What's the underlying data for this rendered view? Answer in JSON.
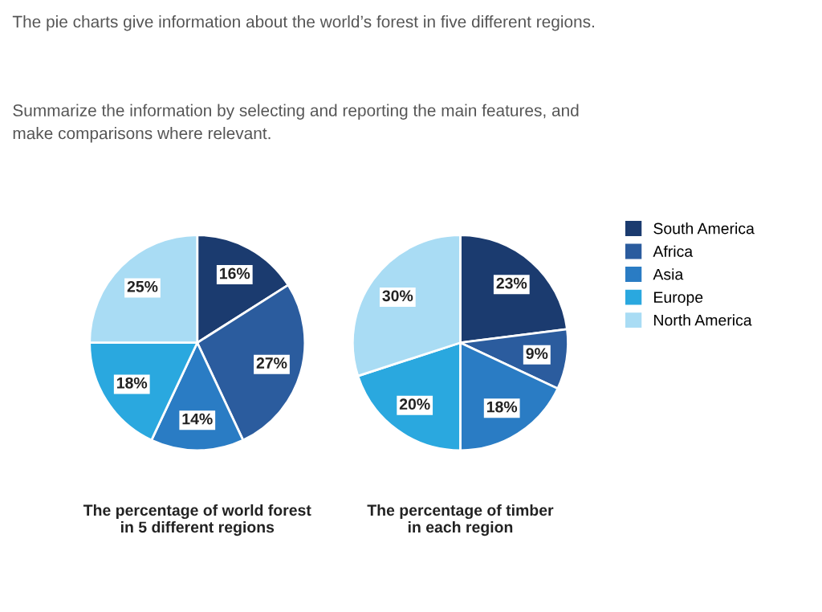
{
  "chart_data": [
    {
      "type": "pie",
      "title": "The percentage of world forest\nin 5 different regions",
      "annotations": [
        "The pie charts give information about the world’s forest in five different regions.",
        "Summarize the information by selecting and reporting the main features, and\nmake comparisons where relevant."
      ],
      "categories": [
        "South America",
        "Africa",
        "Asia",
        "Europe",
        "North America"
      ],
      "values": [
        16,
        27,
        14,
        18,
        25
      ],
      "value_labels": [
        "16%",
        "27%",
        "14%",
        "18%",
        "25%"
      ],
      "colors": [
        "#1b3b6f",
        "#2b5c9e",
        "#2a7cc4",
        "#2aa8df",
        "#a9dcf4"
      ],
      "legend": "right"
    },
    {
      "type": "pie",
      "title": "The percentage of timber\nin each region",
      "categories": [
        null,
        null,
        null,
        null,
        null
      ],
      "values": [
        23,
        9,
        18,
        20,
        30
      ],
      "value_labels": [
        "23%",
        "9%",
        "18%",
        "20%",
        "30%"
      ],
      "colors": [
        "#1b3b6f",
        "#2b5c9e",
        "#2a7cc4",
        "#2aa8df",
        "#a9dcf4"
      ]
    }
  ]
}
